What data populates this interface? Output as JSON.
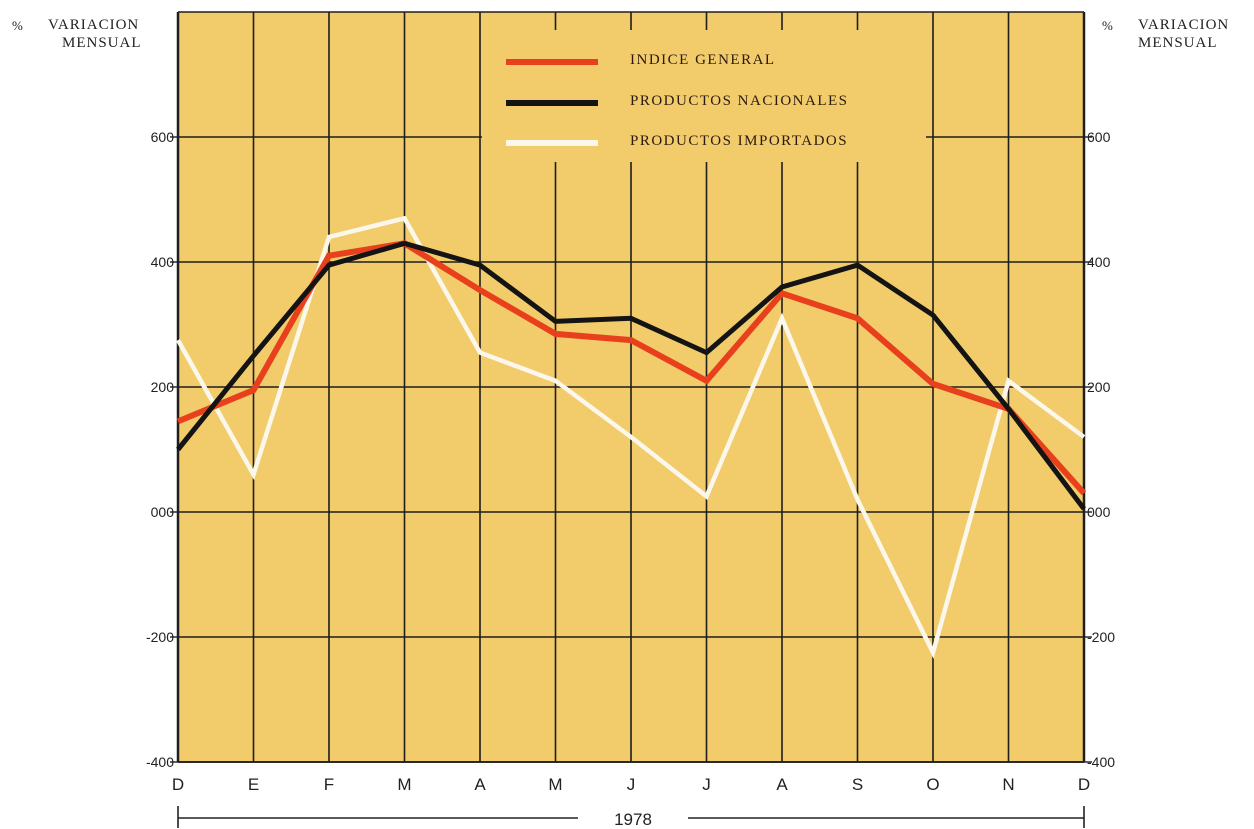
{
  "left_axis": {
    "percent_symbol": "%",
    "line1": "VARIACION",
    "line2": "MENSUAL"
  },
  "right_axis": {
    "percent_symbol": "%",
    "line1": "VARIACION",
    "line2": "MENSUAL"
  },
  "colors": {
    "plot_bg": "#f2cb6b",
    "grid": "#1e1e1e",
    "red": "#e8401c",
    "black": "#141414",
    "white": "#fbf7ea"
  },
  "chart_data": {
    "type": "line",
    "categories": [
      "D",
      "E",
      "F",
      "M",
      "A",
      "M",
      "J",
      "J",
      "A",
      "S",
      "O",
      "N",
      "D"
    ],
    "ylim": [
      -400,
      800
    ],
    "ytick_values": [
      -400,
      -200,
      0,
      200,
      400,
      600
    ],
    "left_tick_labels": [
      "-400",
      "-200",
      "000",
      "200",
      "400",
      "600"
    ],
    "right_tick_labels": [
      "-400",
      "-200",
      "000",
      "200",
      "400",
      "600"
    ],
    "grid": true,
    "legend_position": "top-center",
    "xlabel": "1978",
    "series": [
      {
        "name": "INDICE GENERAL",
        "color": "#e8401c",
        "values": [
          145,
          195,
          410,
          430,
          355,
          285,
          275,
          210,
          350,
          310,
          205,
          165,
          30
        ]
      },
      {
        "name": "PRODUCTOS NACIONALES",
        "color": "#141414",
        "values": [
          100,
          250,
          395,
          430,
          395,
          305,
          310,
          255,
          360,
          395,
          315,
          165,
          5
        ]
      },
      {
        "name": "PRODUCTOS IMPORTADOS",
        "color": "#fbf7ea",
        "values": [
          275,
          60,
          440,
          470,
          255,
          210,
          120,
          25,
          310,
          20,
          -225,
          210,
          120
        ]
      }
    ]
  }
}
